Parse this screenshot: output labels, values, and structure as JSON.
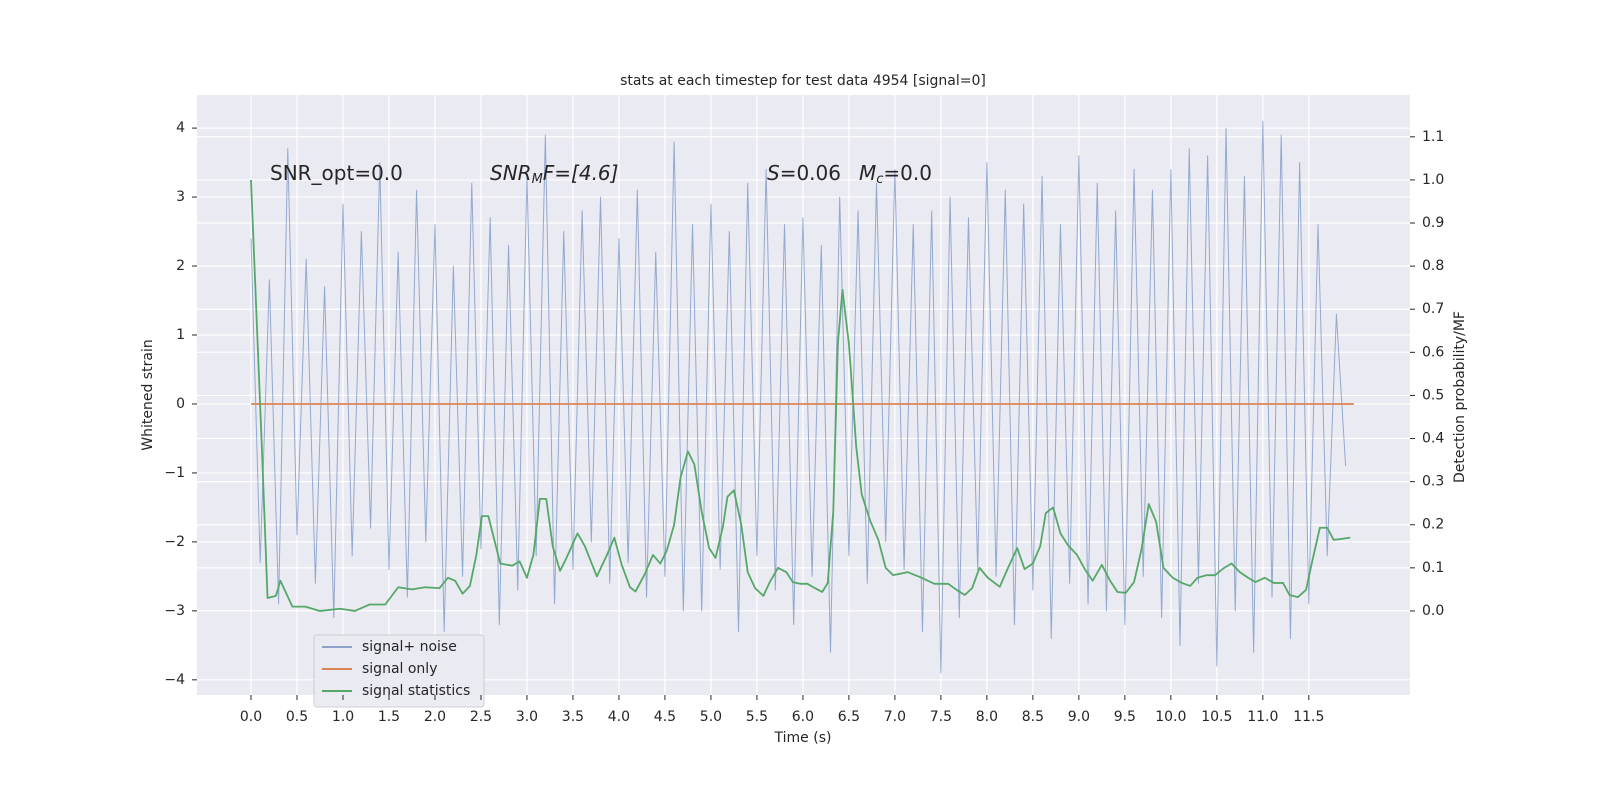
{
  "chart_data": {
    "type": "line",
    "title": "stats at each timestep for test data 4954 [signal=0]",
    "xlabel": "Time (s)",
    "ylabel": "Whitened strain",
    "y2label": "Detection probability/MF",
    "annotations": [
      {
        "parts": [
          "SNR_opt=0.0"
        ]
      },
      {
        "parts": [
          "SNR",
          "M",
          "F=[4.6]"
        ]
      },
      {
        "parts": [
          "S",
          "=0.06"
        ]
      },
      {
        "parts": [
          "M",
          "c",
          "=0.0"
        ]
      }
    ],
    "xlim": [
      -0.587,
      12.6
    ],
    "ylim": [
      -4.22,
      4.48
    ],
    "y2lim": [
      -0.195,
      1.197
    ],
    "xticks": [
      {
        "value": 0,
        "label": "0.0"
      },
      0.5,
      {
        "value": 1,
        "label": "1.0"
      },
      1.5,
      {
        "value": 2,
        "label": "2.0"
      },
      2.5,
      {
        "value": 3,
        "label": "3.0"
      },
      3.5,
      {
        "value": 4,
        "label": "4.0"
      },
      4.5,
      {
        "value": 5,
        "label": "5.0"
      },
      5.5,
      {
        "value": 6,
        "label": "6.0"
      },
      6.5,
      {
        "value": 7,
        "label": "7.0"
      },
      7.5,
      {
        "value": 8,
        "label": "8.0"
      },
      8.5,
      {
        "value": 9,
        "label": "9.0"
      },
      9.5,
      {
        "value": 10,
        "label": "10.0"
      },
      10.5,
      {
        "value": 11,
        "label": "11.0"
      },
      11.5
    ],
    "yticks": [
      {
        "value": -4,
        "label": "−4"
      },
      {
        "value": -3,
        "label": "−3"
      },
      {
        "value": -2,
        "label": "−2"
      },
      {
        "value": -1,
        "label": "−1"
      },
      0,
      1,
      2,
      3,
      4
    ],
    "y2ticks": [
      {
        "value": 0,
        "label": "0.0"
      },
      0.1,
      0.2,
      0.3,
      0.4,
      0.5,
      0.6,
      0.7,
      0.8,
      0.9,
      {
        "value": 1,
        "label": "1.0"
      },
      1.1
    ],
    "grid": true,
    "legend": "lower left",
    "series": [
      {
        "name": "signal+ noise",
        "color": "#4c72b0",
        "x": [
          0.0,
          0.1,
          0.2,
          0.3,
          0.4,
          0.5,
          0.6,
          0.7,
          0.8,
          0.9,
          1.0,
          1.1,
          1.2,
          1.3,
          1.4,
          1.5,
          1.6,
          1.7,
          1.8,
          1.9,
          2.0,
          2.1,
          2.2,
          2.3,
          2.4,
          2.5,
          2.6,
          2.7,
          2.8,
          2.9,
          3.0,
          3.1,
          3.2,
          3.3,
          3.4,
          3.5,
          3.6,
          3.7,
          3.8,
          3.9,
          4.0,
          4.1,
          4.2,
          4.3,
          4.4,
          4.5,
          4.6,
          4.7,
          4.8,
          4.9,
          5.0,
          5.1,
          5.2,
          5.3,
          5.4,
          5.5,
          5.6,
          5.7,
          5.8,
          5.9,
          6.0,
          6.1,
          6.2,
          6.3,
          6.4,
          6.5,
          6.6,
          6.7,
          6.8,
          6.9,
          7.0,
          7.1,
          7.2,
          7.3,
          7.4,
          7.5,
          7.6,
          7.7,
          7.8,
          7.9,
          8.0,
          8.1,
          8.2,
          8.3,
          8.4,
          8.5,
          8.6,
          8.7,
          8.8,
          8.9,
          9.0,
          9.1,
          9.2,
          9.3,
          9.4,
          9.5,
          9.6,
          9.7,
          9.8,
          9.9,
          10.0,
          10.1,
          10.2,
          10.3,
          10.4,
          10.5,
          10.6,
          10.7,
          10.8,
          10.9,
          11.0,
          11.1,
          11.2,
          11.3,
          11.4,
          11.5,
          11.6,
          11.7,
          11.8,
          11.9
        ],
        "values": [
          2.4,
          -2.3,
          1.8,
          -2.9,
          3.7,
          -1.9,
          2.1,
          -2.6,
          1.7,
          -3.1,
          2.9,
          -2.2,
          2.5,
          -1.8,
          3.5,
          -2.4,
          2.2,
          -2.8,
          3.1,
          -2.0,
          2.6,
          -3.3,
          2.0,
          -2.5,
          3.2,
          -2.1,
          2.7,
          -3.2,
          2.3,
          -2.7,
          3.3,
          -2.2,
          3.9,
          -2.9,
          2.5,
          -2.4,
          2.8,
          -2.0,
          3.0,
          -2.6,
          2.4,
          -2.3,
          3.1,
          -2.8,
          2.2,
          -2.5,
          3.8,
          -3.0,
          2.6,
          -3.0,
          2.9,
          -2.4,
          2.5,
          -3.3,
          3.2,
          -2.2,
          3.4,
          -2.7,
          2.6,
          -3.2,
          2.7,
          -2.5,
          2.3,
          -3.6,
          3.0,
          -2.2,
          2.8,
          -2.6,
          3.2,
          -2.0,
          3.4,
          -2.4,
          2.6,
          -3.3,
          2.8,
          -3.9,
          3.0,
          -3.1,
          2.7,
          -2.4,
          3.5,
          -2.5,
          3.1,
          -3.2,
          2.9,
          -2.7,
          3.3,
          -3.4,
          2.6,
          -2.6,
          3.6,
          -2.9,
          3.2,
          -3.0,
          2.8,
          -3.2,
          3.4,
          -2.5,
          3.1,
          -3.1,
          3.4,
          -3.5,
          3.7,
          -2.6,
          3.6,
          -3.8,
          4.0,
          -3.0,
          3.3,
          -3.6,
          4.1,
          -2.8,
          3.9,
          -3.4,
          3.5,
          -2.9,
          2.6,
          -2.2,
          1.3,
          -0.9
        ]
      },
      {
        "name": "signal only",
        "color": "#dd8452",
        "x": [
          0.0,
          11.99
        ],
        "values": [
          0,
          0
        ]
      },
      {
        "name": "signal statistics",
        "color": "#55a868",
        "axis": "y2",
        "x": [
          0.0,
          0.12,
          0.18,
          0.27,
          0.32,
          0.45,
          0.59,
          0.75,
          0.97,
          1.13,
          1.29,
          1.46,
          1.6,
          1.75,
          1.89,
          2.05,
          2.14,
          2.22,
          2.3,
          2.38,
          2.45,
          2.51,
          2.58,
          2.71,
          2.84,
          2.92,
          3.0,
          3.07,
          3.14,
          3.21,
          3.28,
          3.36,
          3.43,
          3.55,
          3.63,
          3.76,
          3.87,
          3.95,
          4.03,
          4.12,
          4.18,
          4.28,
          4.37,
          4.45,
          4.52,
          4.6,
          4.67,
          4.75,
          4.82,
          4.9,
          4.98,
          5.05,
          5.13,
          5.18,
          5.25,
          5.33,
          5.4,
          5.48,
          5.57,
          5.64,
          5.73,
          5.82,
          5.89,
          5.97,
          6.05,
          6.13,
          6.21,
          6.27,
          6.33,
          6.38,
          6.43,
          6.5,
          6.58,
          6.64,
          6.73,
          6.82,
          6.9,
          6.98,
          7.05,
          7.14,
          7.27,
          7.43,
          7.58,
          7.67,
          7.76,
          7.84,
          7.92,
          8.01,
          8.14,
          8.23,
          8.33,
          8.41,
          8.5,
          8.58,
          8.64,
          8.72,
          8.8,
          8.88,
          8.98,
          9.07,
          9.15,
          9.25,
          9.34,
          9.42,
          9.51,
          9.6,
          9.68,
          9.76,
          9.84,
          9.92,
          10.02,
          10.12,
          10.21,
          10.29,
          10.39,
          10.48,
          10.58,
          10.66,
          10.75,
          10.84,
          10.92,
          11.02,
          11.12,
          11.22,
          11.29,
          11.38,
          11.47,
          11.54,
          11.62,
          11.7,
          11.77,
          11.85,
          11.95
        ],
        "values": [
          1.0,
          0.37,
          0.03,
          0.035,
          0.07,
          0.01,
          0.01,
          0.0,
          0.005,
          0.0,
          0.015,
          0.015,
          0.055,
          0.05,
          0.055,
          0.053,
          0.077,
          0.07,
          0.04,
          0.058,
          0.13,
          0.22,
          0.22,
          0.11,
          0.105,
          0.115,
          0.077,
          0.13,
          0.26,
          0.26,
          0.15,
          0.093,
          0.123,
          0.18,
          0.15,
          0.08,
          0.13,
          0.17,
          0.107,
          0.055,
          0.045,
          0.085,
          0.13,
          0.11,
          0.14,
          0.2,
          0.31,
          0.37,
          0.34,
          0.23,
          0.146,
          0.123,
          0.195,
          0.265,
          0.28,
          0.2,
          0.09,
          0.053,
          0.035,
          0.067,
          0.1,
          0.09,
          0.067,
          0.063,
          0.063,
          0.053,
          0.044,
          0.065,
          0.23,
          0.62,
          0.745,
          0.62,
          0.38,
          0.27,
          0.21,
          0.165,
          0.1,
          0.083,
          0.086,
          0.09,
          0.079,
          0.063,
          0.063,
          0.049,
          0.037,
          0.053,
          0.1,
          0.077,
          0.056,
          0.1,
          0.146,
          0.097,
          0.11,
          0.15,
          0.227,
          0.24,
          0.18,
          0.153,
          0.13,
          0.095,
          0.07,
          0.107,
          0.07,
          0.044,
          0.042,
          0.067,
          0.142,
          0.248,
          0.207,
          0.1,
          0.077,
          0.065,
          0.058,
          0.077,
          0.083,
          0.083,
          0.1,
          0.11,
          0.09,
          0.077,
          0.067,
          0.077,
          0.065,
          0.065,
          0.037,
          0.032,
          0.049,
          0.118,
          0.193,
          0.193,
          0.165,
          0.167,
          0.17
        ]
      }
    ]
  }
}
